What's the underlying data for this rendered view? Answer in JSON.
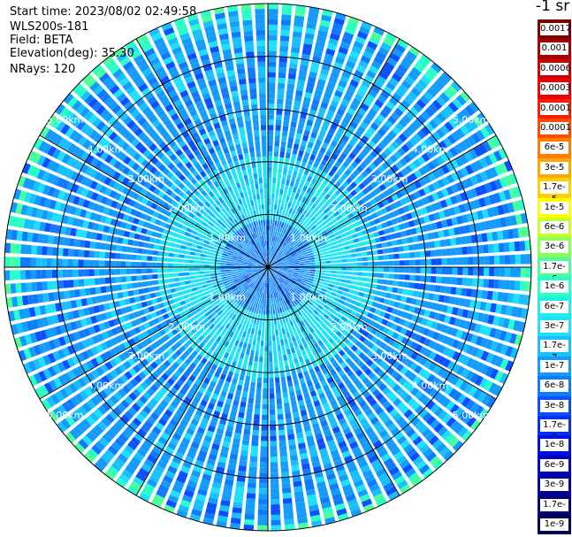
{
  "info": {
    "start_time": "Start time: 2023/08/02 02:49:58",
    "device": "WLS200s-181",
    "field": "Field: BETA",
    "elevation": "Elevation(deg): 35.30",
    "nrays": "NRays: 120"
  },
  "colorbar": {
    "unit_label": "-1 sr",
    "levels": [
      {
        "label": "0.0017",
        "color": "#7a0000"
      },
      {
        "label": "0.001",
        "color": "#a30000"
      },
      {
        "label": "0.0006",
        "color": "#cc0000"
      },
      {
        "label": "0.0003",
        "color": "#f00000"
      },
      {
        "label": "0.00017",
        "color": "#ff1a00"
      },
      {
        "label": "0.0001",
        "color": "#ff4d00"
      },
      {
        "label": "6e-5",
        "color": "#ff7f00"
      },
      {
        "label": "3e-5",
        "color": "#ffa600"
      },
      {
        "label": "1.7e-5",
        "color": "#ffd000"
      },
      {
        "label": "1e-5",
        "color": "#ffff00"
      },
      {
        "label": "6e-6",
        "color": "#c8ff2a"
      },
      {
        "label": "3e-6",
        "color": "#8aff5a"
      },
      {
        "label": "1.7e-6",
        "color": "#4dff9a"
      },
      {
        "label": "1e-6",
        "color": "#2bffc8"
      },
      {
        "label": "6e-7",
        "color": "#1ff0e6"
      },
      {
        "label": "3e-7",
        "color": "#1fe0ff"
      },
      {
        "label": "1.7e-7",
        "color": "#19c0ff"
      },
      {
        "label": "1e-7",
        "color": "#149bff"
      },
      {
        "label": "6e-8",
        "color": "#0f7aff"
      },
      {
        "label": "3e-8",
        "color": "#0a50ff"
      },
      {
        "label": "1.7e-8",
        "color": "#0530f0"
      },
      {
        "label": "1e-8",
        "color": "#0010e0"
      },
      {
        "label": "6e-9",
        "color": "#0000c0"
      },
      {
        "label": "3e-9",
        "color": "#00009a"
      },
      {
        "label": "1.7e-9",
        "color": "#000078"
      },
      {
        "label": "1e-9",
        "color": "#000050"
      }
    ]
  },
  "chart_data": {
    "type": "heatmap",
    "projection": "polar",
    "field": "BETA",
    "nrays": 120,
    "max_range_km": 5.0,
    "range_rings_km": [
      1.0,
      2.0,
      3.0,
      4.0,
      5.0
    ],
    "ring_labels": [
      "1.00km",
      "2.00km",
      "3.00km",
      "4.00km",
      "5.00km"
    ],
    "spoke_step_deg": 30,
    "value_units": "-1 sr",
    "typical_values_by_range_km": [
      {
        "range_km": 0.5,
        "value": "1.7e-8"
      },
      {
        "range_km": 1.0,
        "value": "3e-8"
      },
      {
        "range_km": 1.5,
        "value": "3e-7"
      },
      {
        "range_km": 2.0,
        "value": "1e-7"
      },
      {
        "range_km": 3.0,
        "value": "3e-8"
      },
      {
        "range_km": 4.0,
        "value": "3e-8"
      },
      {
        "range_km": 5.0,
        "value": "1e-7"
      }
    ]
  }
}
